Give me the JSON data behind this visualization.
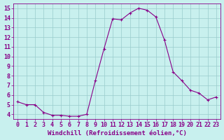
{
  "x": [
    0,
    1,
    2,
    3,
    4,
    5,
    6,
    7,
    8,
    9,
    10,
    11,
    12,
    13,
    14,
    15,
    16,
    17,
    18,
    19,
    20,
    21,
    22,
    23
  ],
  "y": [
    5.3,
    5.0,
    5.0,
    4.2,
    3.9,
    3.9,
    3.8,
    3.8,
    4.0,
    7.5,
    10.8,
    13.9,
    13.8,
    14.5,
    15.0,
    14.8,
    14.1,
    11.7,
    8.4,
    7.5,
    6.5,
    6.2,
    5.5,
    5.8
  ],
  "line_color": "#880088",
  "marker": "+",
  "bg_color": "#c8f0ee",
  "grid_color": "#99cccc",
  "xlabel": "Windchill (Refroidissement éolien,°C)",
  "xlabel_fontsize": 6.5,
  "tick_fontsize": 6.0,
  "tick_color": "#880088",
  "ylim": [
    3.5,
    15.5
  ],
  "xlim": [
    -0.5,
    23.5
  ],
  "yticks": [
    4,
    5,
    6,
    7,
    8,
    9,
    10,
    11,
    12,
    13,
    14,
    15
  ],
  "xticks": [
    0,
    1,
    2,
    3,
    4,
    5,
    6,
    7,
    8,
    9,
    10,
    11,
    12,
    13,
    14,
    15,
    16,
    17,
    18,
    19,
    20,
    21,
    22,
    23
  ],
  "xtick_labels": [
    "0",
    "1",
    "2",
    "3",
    "4",
    "5",
    "6",
    "7",
    "8",
    "9",
    "10",
    "11",
    "12",
    "13",
    "14",
    "15",
    "16",
    "17",
    "18",
    "19",
    "20",
    "21",
    "22",
    "23"
  ]
}
